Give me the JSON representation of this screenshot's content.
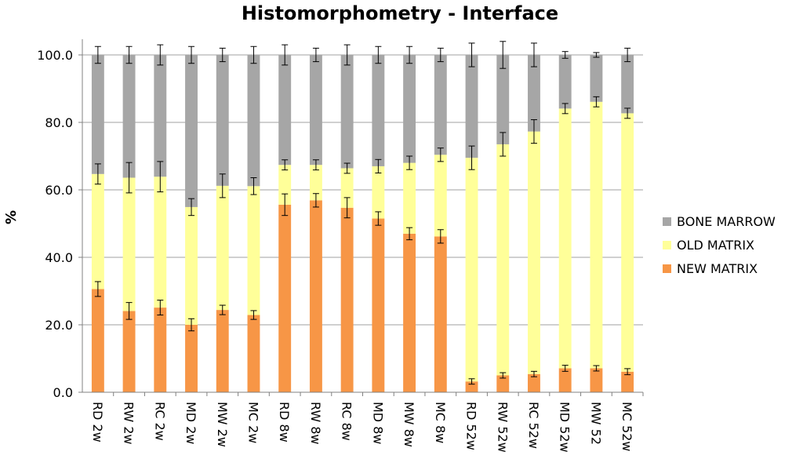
{
  "chart_data": {
    "type": "bar",
    "stacked": true,
    "title": "Histomorphometry - Interface",
    "xlabel": "",
    "ylabel": "%",
    "ylim": [
      0,
      100
    ],
    "yticks": [
      "0.0",
      "20.0",
      "40.0",
      "60.0",
      "80.0",
      "100.0"
    ],
    "yticks_values": [
      0,
      20,
      40,
      60,
      80,
      100
    ],
    "grid": true,
    "legend_position": "right",
    "categories": [
      "RD 2w",
      "RW 2w",
      "RC 2w",
      "MD 2w",
      "MW 2w",
      "MC 2w",
      "RD 8w",
      "RW 8w",
      "RC 8w",
      "MD 8w",
      "MW 8w",
      "MC 8w",
      "RD 52w",
      "RW 52w",
      "RC 52w",
      "MD 52w",
      "MW 52",
      "MC 52w"
    ],
    "series": [
      {
        "name": "NEW MATRIX",
        "color": "#f79646",
        "values": [
          30.6,
          24.1,
          25.1,
          20.0,
          24.4,
          22.9,
          55.6,
          56.9,
          54.7,
          51.5,
          47.0,
          46.2,
          3.2,
          5.0,
          5.4,
          7.1,
          7.1,
          6.1
        ],
        "errors": [
          2.2,
          2.5,
          2.2,
          1.8,
          1.4,
          1.3,
          3.2,
          2.0,
          3.0,
          2.0,
          1.8,
          2.0,
          0.8,
          0.8,
          0.8,
          0.9,
          0.8,
          0.9
        ]
      },
      {
        "name": "OLD MATRIX",
        "color": "#ffff99",
        "values": [
          34.1,
          39.5,
          38.8,
          34.9,
          36.8,
          38.2,
          11.8,
          10.5,
          11.7,
          15.5,
          21.0,
          24.2,
          66.3,
          68.5,
          71.9,
          77.0,
          79.0,
          76.6
        ],
        "errors": [
          3.0,
          4.5,
          4.5,
          2.5,
          3.5,
          2.5,
          1.5,
          1.5,
          1.5,
          2.0,
          2.0,
          2.0,
          3.5,
          3.5,
          3.5,
          1.5,
          1.5,
          1.5
        ]
      },
      {
        "name": "BONE MARROW",
        "color": "#a6a6a6",
        "values": [
          35.3,
          36.4,
          36.1,
          45.1,
          38.8,
          38.9,
          32.6,
          32.6,
          33.6,
          33.0,
          32.0,
          29.6,
          30.5,
          26.5,
          22.7,
          15.9,
          13.9,
          17.3
        ],
        "errors": [
          2.5,
          2.5,
          3.0,
          2.5,
          2.0,
          2.5,
          3.0,
          2.0,
          3.0,
          2.5,
          2.5,
          2.0,
          3.5,
          4.0,
          3.5,
          1.0,
          0.7,
          2.0
        ]
      }
    ],
    "legend_order": [
      "BONE MARROW",
      "OLD MATRIX",
      "NEW MATRIX"
    ]
  }
}
